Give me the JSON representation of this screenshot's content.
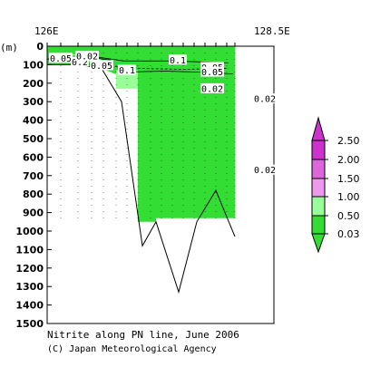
{
  "chart_data": {
    "type": "contour",
    "title": "Nitrite along PN line, June 2006",
    "credit": "(C) Japan Meteorological Agency",
    "ylabel": "(m)",
    "x_ticks": [
      "126E",
      "128.5E"
    ],
    "xlim": [
      126,
      128.5
    ],
    "ylim": [
      1500,
      0
    ],
    "y_ticks": [
      0,
      100,
      200,
      300,
      400,
      500,
      600,
      700,
      800,
      900,
      1000,
      1100,
      1200,
      1300,
      1400,
      1500
    ],
    "colorbar": {
      "levels": [
        "2.50",
        "2.00",
        "1.50",
        "1.00",
        "0.50",
        "0.03"
      ],
      "colors": [
        "#cc33cc",
        "#dd66dd",
        "#ee99ee",
        "#99ff99",
        "#33dd33"
      ]
    },
    "contour_labels": [
      {
        "text": "0.05",
        "lon": 126.15,
        "depth": 65
      },
      {
        "text": "0.2",
        "lon": 126.36,
        "depth": 85
      },
      {
        "text": "0.02",
        "lon": 126.44,
        "depth": 55
      },
      {
        "text": "0.05",
        "lon": 126.6,
        "depth": 105
      },
      {
        "text": "0.1",
        "lon": 127.44,
        "depth": 75
      },
      {
        "text": "0.1",
        "lon": 126.88,
        "depth": 130
      },
      {
        "text": "0.05",
        "lon": 127.82,
        "depth": 115
      },
      {
        "text": "0.05",
        "lon": 127.82,
        "depth": 140
      },
      {
        "text": "0.02",
        "lon": 127.82,
        "depth": 230
      },
      {
        "text": "0.02",
        "lon": 128.4,
        "depth": 285
      },
      {
        "text": "0.02",
        "lon": 128.4,
        "depth": 670
      }
    ],
    "bottom_topography": [
      {
        "lon": 126.0,
        "depth": 100
      },
      {
        "lon": 126.34,
        "depth": 100
      },
      {
        "lon": 126.6,
        "depth": 120
      },
      {
        "lon": 126.82,
        "depth": 300
      },
      {
        "lon": 127.05,
        "depth": 1080
      },
      {
        "lon": 127.2,
        "depth": 950
      },
      {
        "lon": 127.45,
        "depth": 1330
      },
      {
        "lon": 127.65,
        "depth": 950
      },
      {
        "lon": 127.86,
        "depth": 780
      },
      {
        "lon": 128.07,
        "depth": 1030
      }
    ],
    "station_lons": [
      126.0,
      126.15,
      126.34,
      126.49,
      126.62,
      126.76,
      126.88,
      127.0,
      127.14,
      127.26,
      127.38,
      127.5,
      127.62,
      127.74,
      127.86,
      127.98,
      128.07
    ]
  }
}
